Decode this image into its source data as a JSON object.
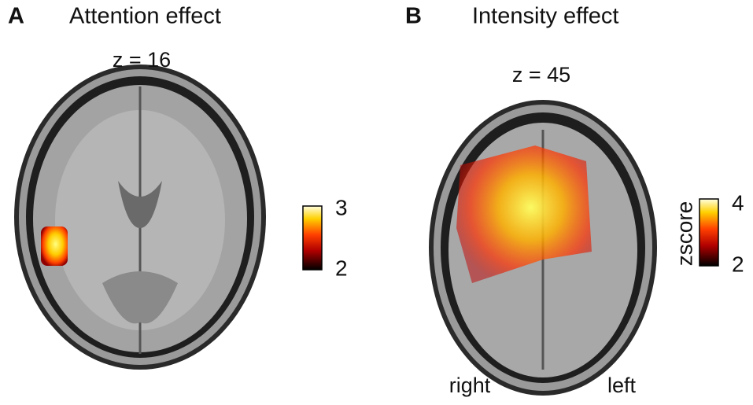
{
  "panels": [
    {
      "label": "A",
      "title": "Attention effect",
      "slice": "z = 16",
      "colorbar": {
        "max": 3,
        "min": 2
      }
    },
    {
      "label": "B",
      "title": "Intensity effect",
      "slice": "z = 45",
      "colorbar": {
        "max": 4,
        "min": 2,
        "title": "zscore"
      },
      "orientation": {
        "left_side": "right",
        "right_side": "left"
      }
    }
  ]
}
